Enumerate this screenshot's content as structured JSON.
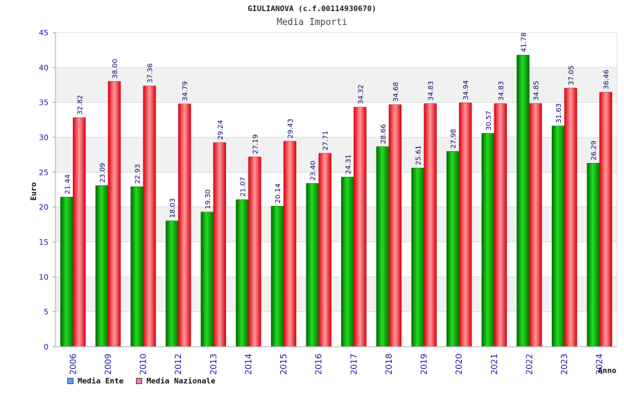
{
  "colors": {
    "ente_bar": "#11bb11",
    "nazionale_bar": "#ee2222",
    "legend_ente": "#5a9fe8",
    "legend_nazionale": "#e77ab3",
    "tick_text": "#1a1aa6",
    "grid_band": "#f1f1f1"
  },
  "chart_data": {
    "type": "bar",
    "title": "GIULIANOVA (c.f.00114930670)",
    "subtitle": "Media Importi",
    "xlabel": "Anno",
    "ylabel": "Euro",
    "ylim": [
      0,
      45
    ],
    "yticks": [
      "0",
      "5",
      "10",
      "15",
      "20",
      "25",
      "30",
      "35",
      "40",
      "45"
    ],
    "categories": [
      "2006",
      "2009",
      "2010",
      "2012",
      "2013",
      "2014",
      "2015",
      "2016",
      "2017",
      "2018",
      "2019",
      "2020",
      "2021",
      "2022",
      "2023",
      "2024"
    ],
    "series": [
      {
        "name": "Media Ente",
        "values": [
          21.44,
          23.09,
          22.93,
          18.03,
          19.3,
          21.07,
          20.14,
          23.4,
          24.31,
          28.66,
          25.61,
          27.98,
          30.57,
          41.78,
          31.63,
          26.29
        ],
        "labels": [
          "21.44",
          "23.09",
          "22.93",
          "18.03",
          "19.30",
          "21.07",
          "20.14",
          "23.40",
          "24.31",
          "28.66",
          "25.61",
          "27.98",
          "30.57",
          "41.78",
          "31.63",
          "26.29"
        ]
      },
      {
        "name": "Media Nazionale",
        "values": [
          32.82,
          38.0,
          37.36,
          34.79,
          29.24,
          27.19,
          29.43,
          27.71,
          34.32,
          34.68,
          34.83,
          34.94,
          34.83,
          34.85,
          37.05,
          36.46
        ],
        "labels": [
          "32.82",
          "38.00",
          "37.36",
          "34.79",
          "29.24",
          "27.19",
          "29.43",
          "27.71",
          "34.32",
          "34.68",
          "34.83",
          "34.94",
          "34.83",
          "34.85",
          "37.05",
          "36.46"
        ]
      }
    ],
    "grid": true,
    "legend_position": "bottom-left"
  }
}
